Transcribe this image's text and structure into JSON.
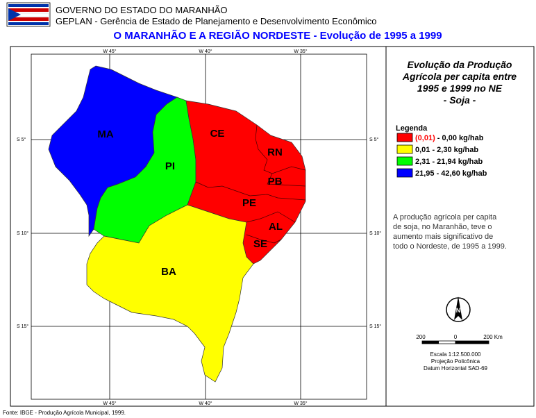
{
  "header": {
    "line1": "GOVERNO DO ESTADO DO MARANHÃO",
    "line2": "GEPLAN - Gerência de Estado de Planejamento e Desenvolvimento Econômico"
  },
  "title": "O MARANHÃO E A REGIÃO NORDESTE - Evolução de 1995 a 1999",
  "map": {
    "graticule": {
      "longitudes_top": [
        "W 45°",
        "W 40°",
        "W 35°"
      ],
      "longitudes_bottom": [
        "W 45°",
        "W 40°",
        "W 35°"
      ],
      "latitudes_left": [
        "S 5°",
        "S 10°",
        "S 15°"
      ],
      "latitudes_right": [
        "S 5°",
        "S 10°",
        "S 15°"
      ]
    },
    "states": [
      {
        "label": "MA",
        "color": "#0000ff"
      },
      {
        "label": "PI",
        "color": "#00ff00"
      },
      {
        "label": "CE",
        "color": "#ff0000"
      },
      {
        "label": "RN",
        "color": "#ff0000"
      },
      {
        "label": "PB",
        "color": "#ff0000"
      },
      {
        "label": "PE",
        "color": "#ff0000"
      },
      {
        "label": "AL",
        "color": "#ff0000"
      },
      {
        "label": "SE",
        "color": "#ff0000"
      },
      {
        "label": "BA",
        "color": "#ffff00"
      }
    ]
  },
  "panel": {
    "title_lines": [
      "Evolução da Produção",
      "Agrícola per capita entre",
      "1995 e 1999 no NE",
      "- Soja -"
    ],
    "legend": {
      "title": "Legenda",
      "items": [
        {
          "highlight": "(0,01)",
          "label": " - 0,00 kg/hab",
          "color": "#ff0000"
        },
        {
          "label": "0,01 - 2,30 kg/hab",
          "color": "#ffff00"
        },
        {
          "label": "2,31 - 21,94 kg/hab",
          "color": "#00ff00"
        },
        {
          "label": "21,95 - 42,60 kg/hab",
          "color": "#0000ff"
        }
      ]
    },
    "description": [
      "A produção agrícola per capita",
      "de soja, no Maranhão, teve o",
      "aumento mais significativo de",
      "todo o Nordeste, de 1995 a 1999."
    ],
    "scale": {
      "labels": [
        "200",
        "0",
        "200 Km"
      ],
      "lines": [
        "Escala 1:12.500.000",
        "Projeção Policônica",
        "Datum Horizontal SAD-69"
      ]
    }
  },
  "footer": "Fonte: IBGE - Produção Agrícola Municipal, 1999."
}
